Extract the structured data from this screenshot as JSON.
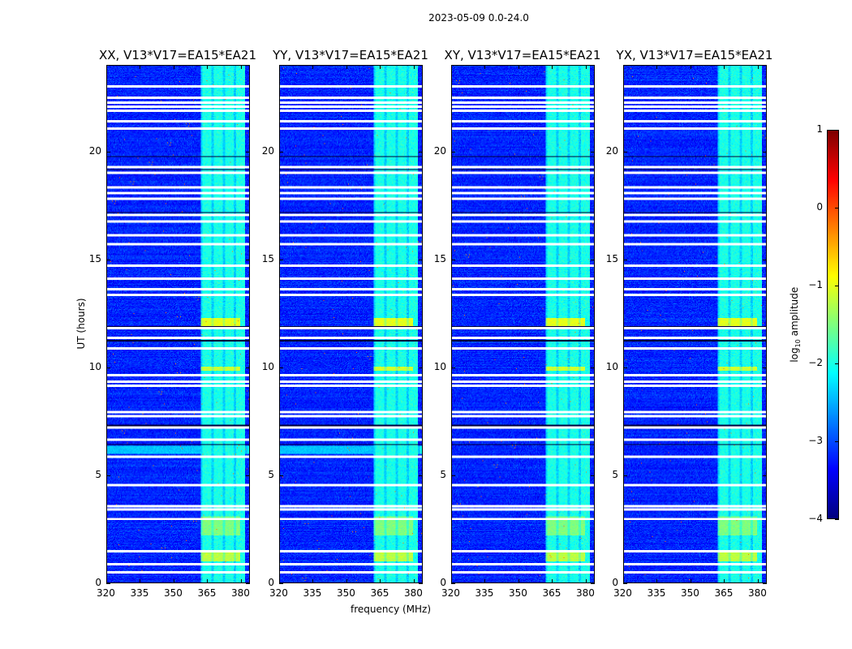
{
  "suptitle": "2023-05-09 0.0-24.0",
  "chart_data": {
    "type": "heatmap",
    "panels": [
      {
        "title": "XX, V13*V17=EA15*EA21"
      },
      {
        "title": "YY, V13*V17=EA15*EA21"
      },
      {
        "title": "XY, V13*V17=EA15*EA21"
      },
      {
        "title": "YX, V13*V17=EA15*EA21"
      }
    ],
    "xlabel": "frequency (MHz)",
    "ylabel": "UT (hours)",
    "xlim": [
      320,
      384
    ],
    "ylim": [
      0,
      24
    ],
    "xticks": [
      320,
      335,
      350,
      365,
      380
    ],
    "yticks": [
      0,
      5,
      10,
      15,
      20
    ],
    "colorbar": {
      "label": "log10 amplitude",
      "label_main": "log",
      "label_sub": "10",
      "label_rest": " amplitude",
      "range": [
        -4,
        1
      ],
      "ticks": [
        1,
        0,
        -1,
        -2,
        -3,
        -4
      ],
      "tick_labels": [
        "1",
        "0",
        "−1",
        "−2",
        "−3",
        "−4"
      ],
      "colormap": "jet"
    },
    "background_level": -3.2,
    "rfi_band_mhz": [
      362,
      382
    ],
    "rfi_level": -2.0,
    "flagged_hours": [
      23.06,
      22.54,
      22.31,
      22.12,
      21.93,
      21.45,
      21.11,
      19.31,
      19.04,
      18.37,
      18.1,
      17.84,
      17.09,
      16.79,
      16.15,
      15.74,
      14.72,
      14.12,
      13.63,
      13.37,
      11.83,
      11.38,
      10.89,
      9.65,
      9.35,
      9.16,
      7.92,
      7.74,
      7.21,
      6.65,
      5.86,
      4.54,
      3.57,
      3.42,
      2.97,
      1.46,
      0.86,
      0.49
    ],
    "zero_hours": [
      19.79,
      19.2,
      17.2,
      11.9,
      11.25,
      7.95,
      7.3,
      6.43
    ],
    "bright_events": [
      {
        "hours": [
          11.9,
          12.3
        ],
        "mhz": [
          362,
          380
        ],
        "level": -1.0
      },
      {
        "hours": [
          9.85,
          10.05
        ],
        "mhz": [
          362,
          380
        ],
        "level": -1.1
      },
      {
        "hours": [
          1.0,
          1.5
        ],
        "mhz": [
          362,
          380
        ],
        "level": -1.2
      },
      {
        "hours": [
          2.2,
          3.1
        ],
        "mhz": [
          362,
          380
        ],
        "level": -1.5
      },
      {
        "hours": [
          6.0,
          6.35
        ],
        "mhz": [
          320,
          384
        ],
        "level": -2.1
      }
    ]
  }
}
